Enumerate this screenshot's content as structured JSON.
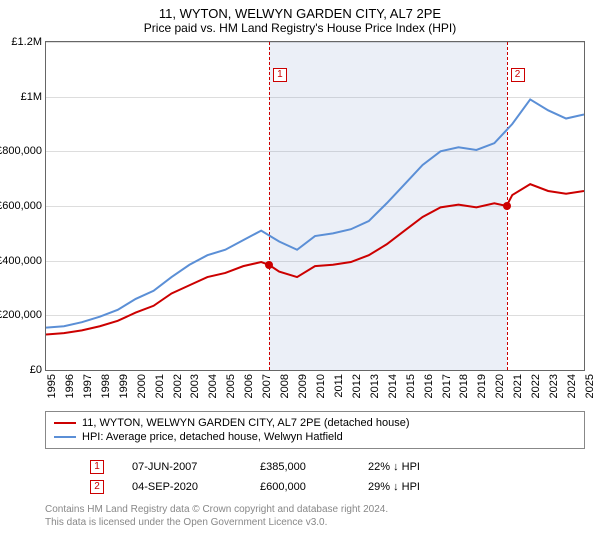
{
  "title": "11, WYTON, WELWYN GARDEN CITY, AL7 2PE",
  "subtitle": "Price paid vs. HM Land Registry's House Price Index (HPI)",
  "chart": {
    "type": "line",
    "x_start_year": 1995,
    "x_end_year": 2025,
    "ylim": [
      0,
      1200000
    ],
    "ytick_step": 200000,
    "yticks": [
      "£0",
      "£200,000",
      "£400,000",
      "£600,000",
      "£800,000",
      "£1M",
      "£1.2M"
    ],
    "xticks": [
      1995,
      1996,
      1997,
      1998,
      1999,
      2000,
      2001,
      2002,
      2003,
      2004,
      2005,
      2006,
      2007,
      2008,
      2009,
      2010,
      2011,
      2012,
      2013,
      2014,
      2015,
      2016,
      2017,
      2018,
      2019,
      2020,
      2021,
      2022,
      2023,
      2024,
      2025
    ],
    "grid_color": "#dddddd",
    "background_color": "#ffffff",
    "shaded_region": {
      "start": 2007.43,
      "end": 2020.68,
      "color": "rgba(120,150,200,0.15)"
    },
    "series": [
      {
        "name": "price_paid",
        "color": "#cc0000",
        "width": 2,
        "points": [
          [
            1995,
            130000
          ],
          [
            1996,
            135000
          ],
          [
            1997,
            145000
          ],
          [
            1998,
            160000
          ],
          [
            1999,
            180000
          ],
          [
            2000,
            210000
          ],
          [
            2001,
            235000
          ],
          [
            2002,
            280000
          ],
          [
            2003,
            310000
          ],
          [
            2004,
            340000
          ],
          [
            2005,
            355000
          ],
          [
            2006,
            380000
          ],
          [
            2007,
            395000
          ],
          [
            2007.43,
            385000
          ],
          [
            2008,
            360000
          ],
          [
            2009,
            340000
          ],
          [
            2010,
            380000
          ],
          [
            2011,
            385000
          ],
          [
            2012,
            395000
          ],
          [
            2013,
            420000
          ],
          [
            2014,
            460000
          ],
          [
            2015,
            510000
          ],
          [
            2016,
            560000
          ],
          [
            2017,
            595000
          ],
          [
            2018,
            605000
          ],
          [
            2019,
            595000
          ],
          [
            2020,
            610000
          ],
          [
            2020.68,
            600000
          ],
          [
            2021,
            640000
          ],
          [
            2022,
            680000
          ],
          [
            2023,
            655000
          ],
          [
            2024,
            645000
          ],
          [
            2025,
            655000
          ]
        ]
      },
      {
        "name": "hpi",
        "color": "#5b8fd6",
        "width": 2,
        "points": [
          [
            1995,
            155000
          ],
          [
            1996,
            160000
          ],
          [
            1997,
            175000
          ],
          [
            1998,
            195000
          ],
          [
            1999,
            220000
          ],
          [
            2000,
            260000
          ],
          [
            2001,
            290000
          ],
          [
            2002,
            340000
          ],
          [
            2003,
            385000
          ],
          [
            2004,
            420000
          ],
          [
            2005,
            440000
          ],
          [
            2006,
            475000
          ],
          [
            2007,
            510000
          ],
          [
            2008,
            470000
          ],
          [
            2009,
            440000
          ],
          [
            2010,
            490000
          ],
          [
            2011,
            500000
          ],
          [
            2012,
            515000
          ],
          [
            2013,
            545000
          ],
          [
            2014,
            610000
          ],
          [
            2015,
            680000
          ],
          [
            2016,
            750000
          ],
          [
            2017,
            800000
          ],
          [
            2018,
            815000
          ],
          [
            2019,
            805000
          ],
          [
            2020,
            830000
          ],
          [
            2021,
            900000
          ],
          [
            2022,
            990000
          ],
          [
            2023,
            950000
          ],
          [
            2024,
            920000
          ],
          [
            2025,
            935000
          ]
        ]
      }
    ],
    "sale_markers": [
      {
        "label": "1",
        "x": 2007.43,
        "y": 385000,
        "dot_color": "#cc0000"
      },
      {
        "label": "2",
        "x": 2020.68,
        "y": 600000,
        "dot_color": "#cc0000"
      }
    ]
  },
  "legend": [
    {
      "color": "#cc0000",
      "label": "11, WYTON, WELWYN GARDEN CITY, AL7 2PE (detached house)"
    },
    {
      "color": "#5b8fd6",
      "label": "HPI: Average price, detached house, Welwyn Hatfield"
    }
  ],
  "sales": [
    {
      "marker": "1",
      "date": "07-JUN-2007",
      "price": "£385,000",
      "diff": "22% ↓ HPI"
    },
    {
      "marker": "2",
      "date": "04-SEP-2020",
      "price": "£600,000",
      "diff": "29% ↓ HPI"
    }
  ],
  "footer": {
    "line1": "Contains HM Land Registry data © Crown copyright and database right 2024.",
    "line2": "This data is licensed under the Open Government Licence v3.0."
  }
}
